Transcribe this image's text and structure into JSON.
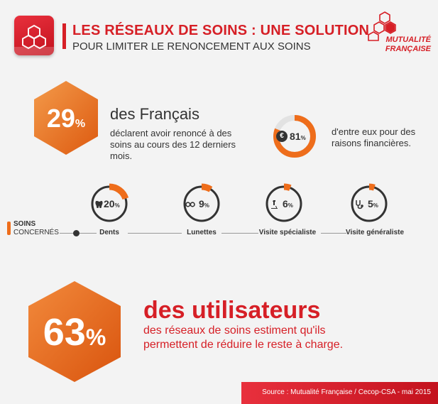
{
  "header": {
    "title": "LES RÉSEAUX DE SOINS : UNE SOLUTION",
    "subtitle": "POUR LIMITER LE RENONCEMENT AUX SOINS",
    "brand_line1": "MUTUALITÉ",
    "brand_line2": "FRANÇAISE"
  },
  "stat1": {
    "value": "29",
    "unit": "%",
    "label": "des Français",
    "description": "déclarent avoir renoncé à des soins au cours des 12 derniers mois."
  },
  "stat81": {
    "symbol": "€",
    "value": "81",
    "unit": "%",
    "fraction": 0.81,
    "description": "d'entre eux pour des raisons financières."
  },
  "soins": {
    "title": "SOINS",
    "subtitle": "CONCERNÉS",
    "items": [
      {
        "label": "Dents",
        "value": "20",
        "unit": "%",
        "fraction": 0.2,
        "icon": "tooth-icon"
      },
      {
        "label": "Lunettes",
        "value": "9",
        "unit": "%",
        "fraction": 0.09,
        "icon": "glasses-icon"
      },
      {
        "label": "Visite spécialiste",
        "value": "6",
        "unit": "%",
        "fraction": 0.06,
        "icon": "microscope-icon"
      },
      {
        "label": "Visite généraliste",
        "value": "5",
        "unit": "%",
        "fraction": 0.05,
        "icon": "stethoscope-icon"
      }
    ]
  },
  "stat2": {
    "value": "63",
    "unit": "%",
    "label": "des utilisateurs",
    "description": "des réseaux de soins estiment qu'ils permettent de réduire le reste à charge."
  },
  "source": {
    "text": "Source : Mutualité Française / Cecop-CSA - mai 2015"
  },
  "colors": {
    "red": "#d61f26",
    "orange": "#ee6d1b",
    "background": "#f3f3f3"
  }
}
